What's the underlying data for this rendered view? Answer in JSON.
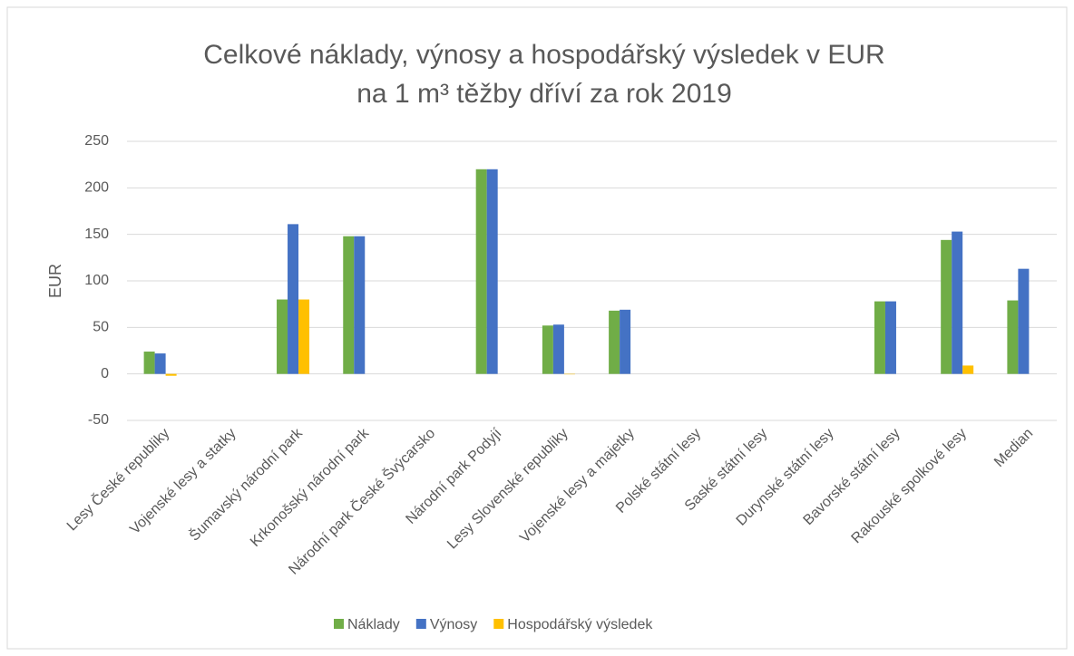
{
  "chart_data": {
    "type": "bar",
    "title": [
      "Celkové náklady, výnosy a hospodářský výsledek v EUR",
      "na 1 m³ těžby dříví za rok 2019"
    ],
    "y_label": "EUR",
    "categories": [
      "Lesy České republiky",
      "Vojenské lesy a statky",
      "Šumavský národní park",
      "Krkonošský národní park",
      "Národní park České Švýcarsko",
      "Národní park Podyjí",
      "Lesy Slovenské republiky",
      "Vojenské lesy a majetky",
      "Polské státní lesy",
      "Saské státní lesy",
      "Durynské státní lesy",
      "Bavorské státní lesy",
      "Rakouské spolkové lesy",
      "Median"
    ],
    "series": [
      {
        "name": "Náklady",
        "color": "#70ad47",
        "values": [
          24,
          null,
          80,
          148,
          null,
          220,
          52,
          68,
          null,
          null,
          null,
          78,
          144,
          79
        ]
      },
      {
        "name": "Výnosy",
        "color": "#4472c4",
        "values": [
          22,
          null,
          161,
          148,
          null,
          220,
          53,
          69,
          null,
          null,
          null,
          78,
          153,
          113
        ]
      },
      {
        "name": "Hospodářský výsledek",
        "color": "#ffc000",
        "values": [
          -2,
          null,
          80,
          null,
          null,
          null,
          0,
          null,
          null,
          null,
          null,
          null,
          9,
          null
        ]
      }
    ],
    "ylim": [
      -50,
      250
    ],
    "yticks": [
      -50,
      0,
      50,
      100,
      150,
      200,
      250
    ],
    "grid": true,
    "legend": "bottom"
  }
}
